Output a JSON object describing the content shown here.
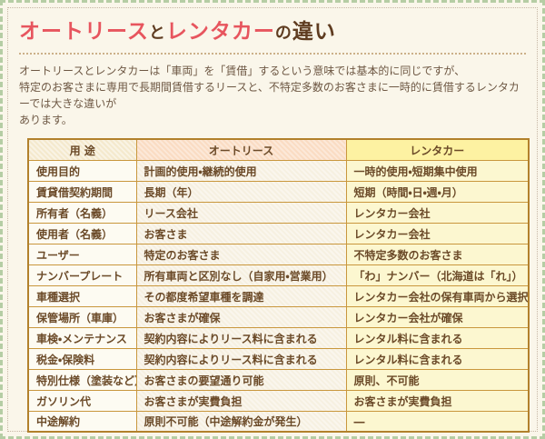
{
  "page": {
    "title": {
      "part1": "オートリース",
      "part2": "と",
      "part3": "レンタカー",
      "part4": "の",
      "part5": "違い"
    },
    "intro": "オートリースとレンタカーは「車両」を「賃借」するという意味では基本的に同じですが、\n特定のお客さまに専用で長期間賃借するリースと、不特定多数のお客さまに一時的に賃借するレンタカーでは大きな違いが\nあります。"
  },
  "colors": {
    "frame_green": "#b5cda4",
    "page_background": "#faf6ea",
    "title_accent_red": "#e7555e",
    "title_brown": "#5f3c20",
    "body_text_brown": "#6e5844",
    "table_border_gold": "#b2812c",
    "cell_border_gold": "#c9973d",
    "header_label_bg": "#f4e9cd",
    "header_lease_bg": "#fadcc3",
    "header_rental_bg": "#fdf2a2",
    "col_label_bg": "#fdfbf2",
    "col_lease_bg": "#f6f0e1",
    "col_rental_bg": "#fcf7d0"
  },
  "table": {
    "headers": [
      "用 途",
      "オートリース",
      "レンタカー"
    ],
    "rows": [
      {
        "label": "使用目的",
        "lease": "計画的使用・継続的使用",
        "rental": "一時的使用・短期集中使用"
      },
      {
        "label": "賃貸借契約期間",
        "lease": "長期（年）",
        "rental": "短期（時間・日・週・月）"
      },
      {
        "label": "所有者（名義）",
        "lease": "リース会社",
        "rental": "レンタカー会社"
      },
      {
        "label": "使用者（名義）",
        "lease": "お客さま",
        "rental": "レンタカー会社"
      },
      {
        "label": "ユーザー",
        "lease": "特定のお客さま",
        "rental": "不特定多数のお客さま"
      },
      {
        "label": "ナンバープレート",
        "lease": "所有車両と区別なし（自家用・営業用）",
        "rental": "「わ」ナンバー（北海道は「れ」）"
      },
      {
        "label": "車種選択",
        "lease": "その都度希望車種を調達",
        "rental": "レンタカー会社の保有車両から選択"
      },
      {
        "label": "保管場所（車庫）",
        "lease": "お客さまが確保",
        "rental": "レンタカー会社が確保"
      },
      {
        "label": "車検・メンテナンス",
        "lease": "契約内容によりリース料に含まれる",
        "rental": "レンタル料に含まれる"
      },
      {
        "label": "税金・保険料",
        "lease": "契約内容によりリース料に含まれる",
        "rental": "レンタル料に含まれる"
      },
      {
        "label": "特別仕様（塗装など）",
        "lease": "お客さまの要望通り可能",
        "rental": "原則、不可能"
      },
      {
        "label": "ガソリン代",
        "lease": "お客さまが実費負担",
        "rental": "お客さまが実費負担"
      },
      {
        "label": "中途解約",
        "lease": "原則不可能（中途解約金が発生）",
        "rental": "―"
      }
    ]
  }
}
